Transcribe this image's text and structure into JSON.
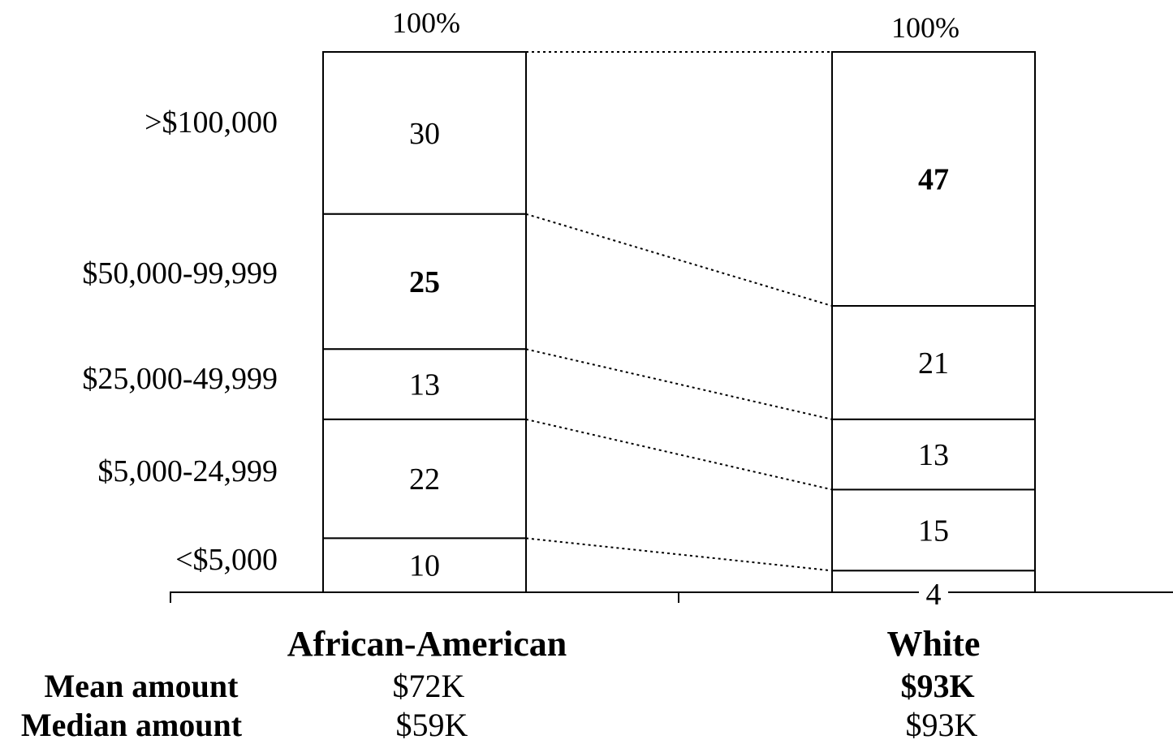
{
  "chart_data": {
    "type": "stacked-bar",
    "categories": [
      ">$100,000",
      "$50,000-99,999",
      "$25,000-49,999",
      "$5,000-24,999",
      "<$5,000"
    ],
    "groups": [
      {
        "name": "African-American",
        "total_label": "100%",
        "values": [
          30,
          25,
          13,
          22,
          10
        ],
        "bold": [
          false,
          true,
          false,
          false,
          false
        ],
        "mean": "$72K",
        "median": "$59K",
        "mean_bold": false
      },
      {
        "name": "White",
        "total_label": "100%",
        "values": [
          47,
          21,
          13,
          15,
          4
        ],
        "bold": [
          true,
          false,
          false,
          false,
          false
        ],
        "mean": "$93K",
        "median": "$93K",
        "mean_bold": true
      }
    ],
    "row_labels": {
      "mean": "Mean amount",
      "median": "Median amount"
    },
    "ylim": [
      0,
      100
    ],
    "grid": false,
    "unit": "%"
  }
}
